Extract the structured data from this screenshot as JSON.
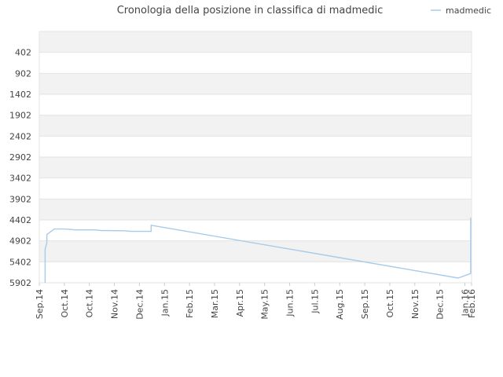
{
  "chart_data": {
    "type": "line",
    "title": "Cronologia della posizione in classifica di madmedic",
    "legend": {
      "placement": "top-right"
    },
    "y_axis": {
      "inverted": true,
      "range": [
        -98,
        5902
      ],
      "ticks": [
        402,
        902,
        1402,
        1902,
        2402,
        2902,
        3402,
        3902,
        4402,
        4902,
        5402,
        5902
      ]
    },
    "x_axis": {
      "range": [
        "2014-09-01",
        "2016-02-01"
      ],
      "ticks": [
        {
          "date": "2014-09-01",
          "label": "Sep.14"
        },
        {
          "date": "2014-10-01",
          "label": "Oct.14"
        },
        {
          "date": "2014-10-31",
          "label": "Oct.14"
        },
        {
          "date": "2014-11-30",
          "label": "Nov.14"
        },
        {
          "date": "2014-12-30",
          "label": "Dec.14"
        },
        {
          "date": "2015-01-29",
          "label": "Jan.15"
        },
        {
          "date": "2015-02-28",
          "label": "Feb.15"
        },
        {
          "date": "2015-03-30",
          "label": "Mar.15"
        },
        {
          "date": "2015-04-29",
          "label": "Apr.15"
        },
        {
          "date": "2015-05-29",
          "label": "May.15"
        },
        {
          "date": "2015-06-28",
          "label": "Jun.15"
        },
        {
          "date": "2015-07-28",
          "label": "Jul.15"
        },
        {
          "date": "2015-08-27",
          "label": "Aug.15"
        },
        {
          "date": "2015-09-26",
          "label": "Sep.15"
        },
        {
          "date": "2015-10-26",
          "label": "Oct.15"
        },
        {
          "date": "2015-11-25",
          "label": "Nov.15"
        },
        {
          "date": "2015-12-25",
          "label": "Dec.15"
        },
        {
          "date": "2016-01-24",
          "label": "Jan.16"
        },
        {
          "date": "2016-02-01",
          "label": "Feb.16"
        }
      ]
    },
    "grid": true,
    "series": [
      {
        "name": "madmedic",
        "color": "#a7cbea",
        "points": [
          {
            "x": "2014-09-08",
            "y": 5902
          },
          {
            "x": "2014-09-08",
            "y": 5100
          },
          {
            "x": "2014-09-10",
            "y": 4950
          },
          {
            "x": "2014-09-10",
            "y": 4750
          },
          {
            "x": "2014-09-19",
            "y": 4620
          },
          {
            "x": "2014-10-02",
            "y": 4620
          },
          {
            "x": "2014-10-14",
            "y": 4640
          },
          {
            "x": "2014-11-07",
            "y": 4640
          },
          {
            "x": "2014-11-14",
            "y": 4655
          },
          {
            "x": "2014-12-12",
            "y": 4660
          },
          {
            "x": "2014-12-20",
            "y": 4675
          },
          {
            "x": "2015-01-13",
            "y": 4675
          },
          {
            "x": "2015-01-13",
            "y": 4530
          },
          {
            "x": "2016-01-16",
            "y": 5790
          },
          {
            "x": "2016-01-31",
            "y": 5680
          },
          {
            "x": "2016-01-31",
            "y": 4350
          }
        ]
      }
    ]
  }
}
